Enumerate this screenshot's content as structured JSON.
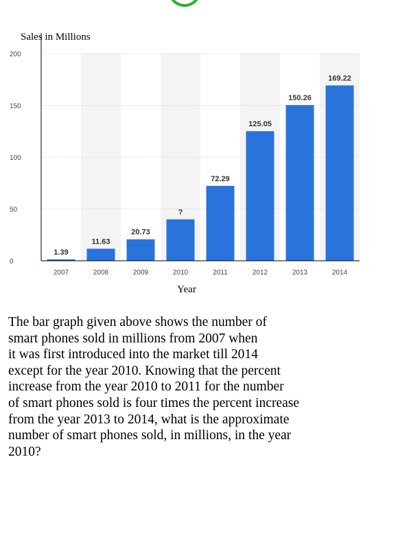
{
  "chart_data": {
    "type": "bar",
    "title": "",
    "ylabel": "Sales in Millions",
    "xlabel": "Year",
    "categories": [
      "2007",
      "2008",
      "2009",
      "2010",
      "2011",
      "2012",
      "2013",
      "2014"
    ],
    "values": [
      1.39,
      11.63,
      20.73,
      40,
      72.29,
      125.05,
      150.26,
      169.22
    ],
    "value_labels": [
      "1.39",
      "11.63",
      "20.73",
      "?",
      "72.29",
      "125.05",
      "150.26",
      "169.22"
    ],
    "ylim": [
      0,
      200
    ],
    "yticks": [
      "0",
      "50",
      "100",
      "150",
      "200"
    ],
    "ytick_values": [
      0,
      50,
      100,
      150,
      200
    ],
    "grid": true,
    "bar_color": "#2a73db",
    "band_color": "#f4f4f4"
  },
  "question": {
    "lines": [
      "The bar graph given above shows the number of",
      "smart phones sold in millions from 2007 when",
      "it was first introduced into the market till 2014",
      "except for the year 2010. Knowing that the percent",
      "increase from the year 2010 to 2011 for the number",
      "of smart phones sold is four times the percent increase",
      "from the year 2013 to 2014, what is the approximate",
      "number of smart phones sold, in millions, in the year",
      "2010?"
    ]
  }
}
